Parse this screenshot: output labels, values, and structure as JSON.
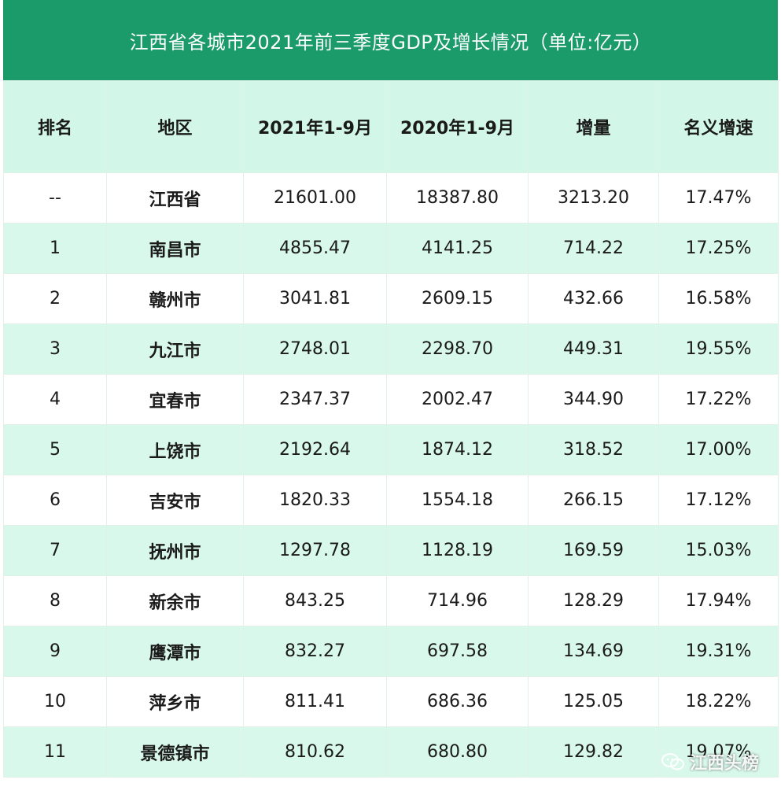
{
  "title": "江西省各城市2021年前三季度GDP及增长情况（单位:亿元）",
  "headers": [
    "排名",
    "地区",
    "2021年1-9月",
    "2020年1-9月",
    "增量",
    "名义增速"
  ],
  "rows": [
    [
      "--",
      "江西省",
      "21601.00",
      "18387.80",
      "3213.20",
      "17.47%"
    ],
    [
      "1",
      "南昌市",
      "4855.47",
      "4141.25",
      "714.22",
      "17.25%"
    ],
    [
      "2",
      "赣州市",
      "3041.81",
      "2609.15",
      "432.66",
      "16.58%"
    ],
    [
      "3",
      "九江市",
      "2748.01",
      "2298.70",
      "449.31",
      "19.55%"
    ],
    [
      "4",
      "宜春市",
      "2347.37",
      "2002.47",
      "344.90",
      "17.22%"
    ],
    [
      "5",
      "上饶市",
      "2192.64",
      "1874.12",
      "318.52",
      "17.00%"
    ],
    [
      "6",
      "吉安市",
      "1820.33",
      "1554.18",
      "266.15",
      "17.12%"
    ],
    [
      "7",
      "抚州市",
      "1297.78",
      "1128.19",
      "169.59",
      "15.03%"
    ],
    [
      "8",
      "新余市",
      "843.25",
      "714.96",
      "128.29",
      "17.94%"
    ],
    [
      "9",
      "鹰潭市",
      "832.27",
      "697.58",
      "134.69",
      "19.31%"
    ],
    [
      "10",
      "萍乡市",
      "811.41",
      "686.36",
      "125.05",
      "18.22%"
    ],
    [
      "11",
      "景德镇市",
      "810.62",
      "680.80",
      "129.82",
      "19.07%"
    ]
  ],
  "watermark": {
    "text": "江西头榜",
    "icon": "wechat-icon"
  }
}
